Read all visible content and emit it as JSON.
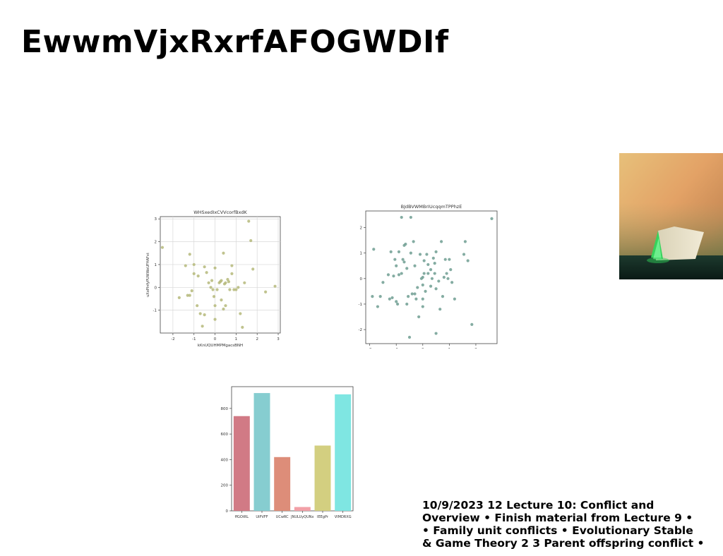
{
  "page_title": "EwwmVjxRxrfAFOGWDIf",
  "footer_lines": [
    "10/9/2023 12 Lecture 10: Conflict and",
    "Overview • Finish material from Lecture 9 •",
    "• Family unit conflicts • Evolutionary Stable",
    "& Game Theory 2 3 Parent offspring conflict •"
  ],
  "chart_data": [
    {
      "type": "scatter",
      "title": "WHSxedIxCVVcorfBxdK",
      "xlabel": "kKnUQUHMPMgacsBNH",
      "ylabel": "uXoPlnfyPUWWeUFHAFxt",
      "xlim": [
        -2.6,
        3.1
      ],
      "ylim": [
        -2.0,
        3.1
      ],
      "xticks": [
        -2,
        -1,
        0,
        1,
        2,
        3
      ],
      "yticks": [
        -1,
        0,
        1,
        2,
        3
      ],
      "grid": true,
      "color": "#b5b97a",
      "points": [
        [
          -2.5,
          1.75
        ],
        [
          -1.7,
          -0.45
        ],
        [
          -1.4,
          0.95
        ],
        [
          -1.2,
          1.45
        ],
        [
          -1.3,
          -0.35
        ],
        [
          -1.2,
          -0.35
        ],
        [
          -1.1,
          -0.15
        ],
        [
          -1.0,
          1.0
        ],
        [
          -1.0,
          0.6
        ],
        [
          -0.8,
          0.5
        ],
        [
          -0.85,
          -0.8
        ],
        [
          -0.7,
          -1.15
        ],
        [
          -0.6,
          -1.7
        ],
        [
          -0.5,
          -1.2
        ],
        [
          -0.5,
          0.9
        ],
        [
          -0.4,
          0.65
        ],
        [
          -0.3,
          0.2
        ],
        [
          -0.2,
          0.0
        ],
        [
          -0.15,
          0.3
        ],
        [
          -0.1,
          -0.1
        ],
        [
          -0.05,
          -0.4
        ],
        [
          0.0,
          0.85
        ],
        [
          0.0,
          -0.8
        ],
        [
          0.0,
          -1.4
        ],
        [
          0.1,
          -0.1
        ],
        [
          0.2,
          0.2
        ],
        [
          0.25,
          0.25
        ],
        [
          0.3,
          -0.55
        ],
        [
          0.3,
          0.3
        ],
        [
          0.4,
          -0.95
        ],
        [
          0.4,
          1.5
        ],
        [
          0.45,
          0.15
        ],
        [
          0.5,
          0.2
        ],
        [
          0.5,
          -0.8
        ],
        [
          0.6,
          0.35
        ],
        [
          0.65,
          0.25
        ],
        [
          0.7,
          -0.1
        ],
        [
          0.8,
          0.95
        ],
        [
          0.8,
          0.6
        ],
        [
          0.9,
          -0.1
        ],
        [
          1.0,
          -0.1
        ],
        [
          1.1,
          0.0
        ],
        [
          1.2,
          -1.15
        ],
        [
          1.3,
          -1.75
        ],
        [
          1.4,
          0.2
        ],
        [
          1.6,
          2.9
        ],
        [
          1.7,
          2.05
        ],
        [
          1.8,
          0.8
        ],
        [
          2.4,
          -0.2
        ],
        [
          2.85,
          0.05
        ]
      ]
    },
    {
      "type": "scatter",
      "title": "BJdBVWMBrIUcqqmTPPhzE",
      "xlabel": "",
      "ylabel": "",
      "xlim": [
        -2.15,
        2.8
      ],
      "ylim": [
        -2.55,
        2.65
      ],
      "xticks": [
        -2,
        -1,
        0,
        1,
        2
      ],
      "yticks": [
        -2,
        -1,
        0,
        1,
        2
      ],
      "grid": false,
      "color": "#6e9e92",
      "points": [
        [
          -1.9,
          -0.7
        ],
        [
          -1.85,
          1.15
        ],
        [
          -1.7,
          -1.1
        ],
        [
          -1.6,
          -0.7
        ],
        [
          -1.5,
          -0.15
        ],
        [
          -1.3,
          0.15
        ],
        [
          -1.25,
          -0.8
        ],
        [
          -1.2,
          1.05
        ],
        [
          -1.15,
          -0.75
        ],
        [
          -1.1,
          0.1
        ],
        [
          -1.05,
          0.75
        ],
        [
          -1.0,
          -0.9
        ],
        [
          -1.0,
          0.5
        ],
        [
          -0.95,
          -1.0
        ],
        [
          -0.9,
          1.05
        ],
        [
          -0.9,
          0.15
        ],
        [
          -0.8,
          2.4
        ],
        [
          -0.8,
          0.2
        ],
        [
          -0.75,
          0.75
        ],
        [
          -0.7,
          0.65
        ],
        [
          -0.7,
          1.3
        ],
        [
          -0.65,
          1.35
        ],
        [
          -0.6,
          -1.0
        ],
        [
          -0.6,
          0.4
        ],
        [
          -0.55,
          -0.7
        ],
        [
          -0.5,
          -2.3
        ],
        [
          -0.45,
          1.0
        ],
        [
          -0.45,
          2.4
        ],
        [
          -0.4,
          -0.6
        ],
        [
          -0.35,
          1.45
        ],
        [
          -0.3,
          0.5
        ],
        [
          -0.3,
          -0.6
        ],
        [
          -0.25,
          -0.8
        ],
        [
          -0.2,
          -0.35
        ],
        [
          -0.15,
          -1.5
        ],
        [
          -0.1,
          0.95
        ],
        [
          -0.05,
          0.0
        ],
        [
          0.0,
          -0.25
        ],
        [
          0.0,
          0.05
        ],
        [
          0.0,
          -0.8
        ],
        [
          0.0,
          -1.1
        ],
        [
          0.05,
          0.2
        ],
        [
          0.05,
          0.7
        ],
        [
          0.1,
          -0.5
        ],
        [
          0.15,
          0.95
        ],
        [
          0.2,
          0.2
        ],
        [
          0.2,
          0.55
        ],
        [
          0.3,
          0.35
        ],
        [
          0.3,
          -0.3
        ],
        [
          0.35,
          0.0
        ],
        [
          0.4,
          0.8
        ],
        [
          0.45,
          0.2
        ],
        [
          0.45,
          0.6
        ],
        [
          0.5,
          1.05
        ],
        [
          0.5,
          -2.15
        ],
        [
          0.5,
          -0.4
        ],
        [
          0.6,
          -0.1
        ],
        [
          0.65,
          -1.2
        ],
        [
          0.7,
          1.45
        ],
        [
          0.75,
          -0.7
        ],
        [
          0.8,
          0.05
        ],
        [
          0.85,
          0.75
        ],
        [
          0.9,
          0.2
        ],
        [
          0.95,
          0.0
        ],
        [
          1.0,
          0.75
        ],
        [
          1.05,
          0.35
        ],
        [
          1.1,
          -0.15
        ],
        [
          1.2,
          -0.8
        ],
        [
          1.55,
          0.95
        ],
        [
          1.6,
          1.45
        ],
        [
          1.7,
          0.7
        ],
        [
          1.85,
          -1.8
        ],
        [
          2.6,
          2.35
        ]
      ]
    },
    {
      "type": "bar",
      "title": "",
      "xlabel": "",
      "ylabel": "",
      "categories": [
        "ffGOtRL",
        "UiPVFF",
        "UCwRC",
        "JNULUyQUNx",
        "IEEgPr",
        "VIMDRXG"
      ],
      "values": [
        740,
        920,
        420,
        30,
        510,
        910
      ],
      "colors": [
        "#d17a85",
        "#86cdd0",
        "#dd8d79",
        "#f2a0a7",
        "#d3cf80",
        "#7fe6e2"
      ],
      "ylim": [
        0,
        970
      ],
      "yticks": [
        0,
        200,
        400,
        600,
        800
      ],
      "grid": false
    }
  ]
}
